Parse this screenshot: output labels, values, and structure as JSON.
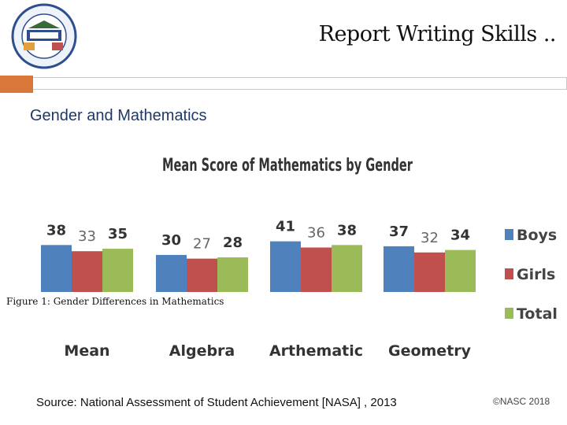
{
  "slide": {
    "title": "Report Writing Skills ..",
    "subtitle": "Gender and Mathematics",
    "figure_caption": "Figure 1: Gender Differences in Mathematics",
    "source": "Source: National Assessment of Student Achievement [NASA] , 2013",
    "copyright": "©NASC 2018"
  },
  "colors": {
    "accent": "#d9763a",
    "subtitle": "#1f3864"
  },
  "chart_data": {
    "type": "bar",
    "title": "Mean Score of Mathematics by Gender",
    "categories": [
      "Mean",
      "Algebra",
      "Arthematic",
      "Geometry"
    ],
    "series": [
      {
        "name": "Boys",
        "color": "#4f81bd",
        "values": [
          38,
          30,
          41,
          37
        ]
      },
      {
        "name": "Girls",
        "color": "#c0504d",
        "values": [
          33,
          27,
          36,
          32
        ]
      },
      {
        "name": "Total",
        "color": "#9bbb59",
        "values": [
          35,
          28,
          38,
          34
        ]
      }
    ],
    "legend_position": "right",
    "grid": false
  }
}
